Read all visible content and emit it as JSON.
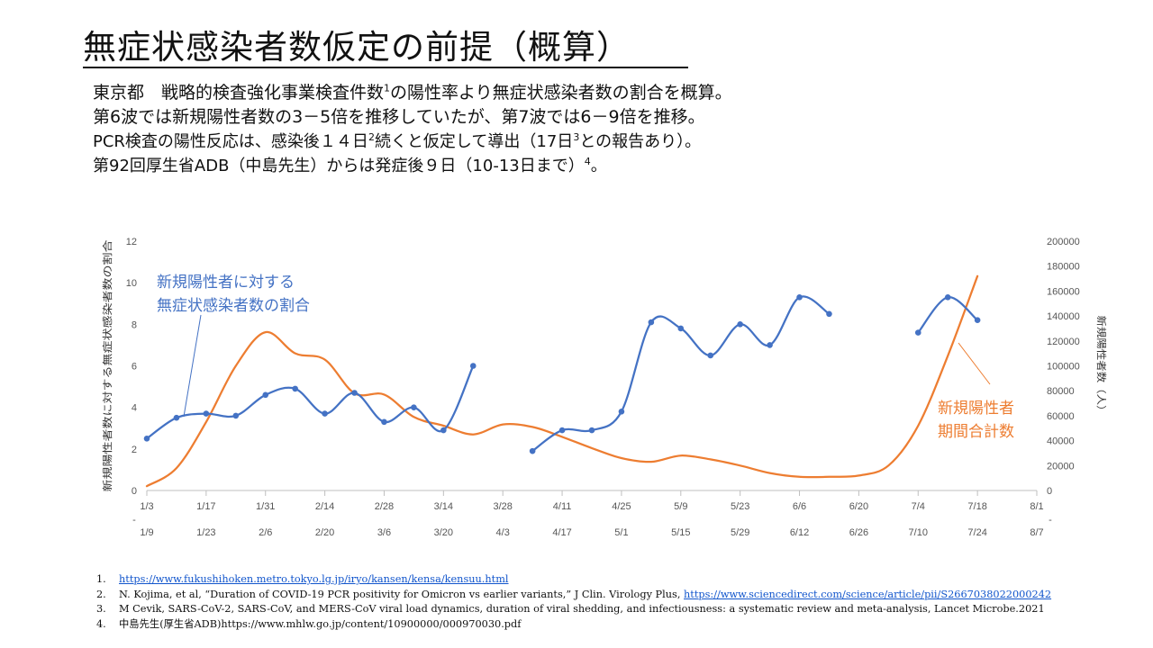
{
  "title": "無症状感染者数仮定の前提（概算）",
  "intro": {
    "line1_a": "東京都　戦略的検査強化事業検査件数",
    "line1_sup": "1",
    "line1_b": "の陽性率より無症状感染者数の割合を概算。",
    "line2": "第6波では新規陽性者数の3－5倍を推移していたが、第7波では6－9倍を推移。",
    "line3_a": "PCR検査の陽性反応は、感染後１４日",
    "line3_sup1": "2",
    "line3_b": "続くと仮定して導出（17日",
    "line3_sup2": "3",
    "line3_c": "との報告あり）。",
    "line4_a": "第92回厚生省ADB（中島先生）からは発症後９日（10-13日まで）",
    "line4_sup": "4",
    "line4_b": "。"
  },
  "chart_data": {
    "type": "line",
    "x_ticks_top": [
      "1/3",
      "1/17",
      "1/31",
      "2/14",
      "2/28",
      "3/14",
      "3/28",
      "4/11",
      "4/25",
      "5/9",
      "5/23",
      "6/6",
      "6/20",
      "7/4",
      "7/18",
      "8/1"
    ],
    "x_ticks_bottom": [
      "1/9",
      "1/23",
      "2/6",
      "2/20",
      "3/6",
      "3/20",
      "4/3",
      "4/17",
      "5/1",
      "5/15",
      "5/29",
      "6/12",
      "6/26",
      "7/10",
      "7/24",
      "8/7"
    ],
    "x_dash": "-",
    "ylabel_left": "新規陽性者数に対する無症状感染者数の割合",
    "ylabel_right": "新規陽性者数（人）",
    "ylim_left": [
      0,
      12
    ],
    "yticks_left": [
      "0",
      "2",
      "4",
      "6",
      "8",
      "10",
      "12"
    ],
    "ylim_right": [
      0,
      200000
    ],
    "yticks_right": [
      "0",
      "20000",
      "40000",
      "60000",
      "80000",
      "100000",
      "120000",
      "140000",
      "160000",
      "180000",
      "200000"
    ],
    "grid": false,
    "series": [
      {
        "axis": "left",
        "color": "#4472c4",
        "x": [
          0,
          1,
          2,
          3,
          4,
          5,
          6,
          7,
          8,
          9,
          10,
          11,
          null,
          13,
          14,
          15,
          16,
          17,
          18,
          19,
          20,
          21,
          22,
          23,
          null,
          null,
          26,
          27,
          28
        ],
        "values": [
          2.5,
          3.5,
          3.7,
          3.6,
          4.6,
          4.9,
          3.7,
          4.7,
          3.3,
          4.0,
          2.9,
          6.0,
          null,
          1.9,
          2.9,
          2.9,
          3.8,
          8.1,
          7.8,
          6.5,
          8.0,
          7.0,
          9.3,
          8.5,
          null,
          null,
          7.6,
          9.3,
          8.2
        ]
      },
      {
        "axis": "right",
        "color": "#ed7d31",
        "x": [
          0,
          1,
          2,
          3,
          4,
          5,
          6,
          7,
          8,
          9,
          10,
          11,
          12,
          13,
          14,
          15,
          16,
          17,
          18,
          19,
          20,
          21,
          22,
          23,
          24,
          25,
          26,
          27,
          28
        ],
        "values": [
          3500,
          18000,
          55000,
          100000,
          127000,
          110000,
          105000,
          78000,
          77000,
          59000,
          52000,
          45000,
          53000,
          51000,
          43000,
          34000,
          26000,
          23000,
          28000,
          25000,
          20000,
          14000,
          11000,
          11000,
          12000,
          20000,
          52000,
          108000,
          172000
        ]
      }
    ],
    "annotations": [
      {
        "text": "新規陽性者に対する",
        "color": "#4472c4"
      },
      {
        "text": "無症状感染者数の割合",
        "color": "#4472c4"
      },
      {
        "text": "新規陽性者",
        "color": "#ed7d31"
      },
      {
        "text": "期間合計数",
        "color": "#ed7d31"
      }
    ]
  },
  "references": [
    {
      "num": "1.",
      "parts": [
        {
          "text": "https://www.fukushihoken.metro.tokyo.lg.jp/iryo/kansen/kensa/kensuu.html",
          "link": true
        }
      ]
    },
    {
      "num": "2.",
      "parts": [
        {
          "text": "N. Kojima, et al, “Duration of COVID-19 PCR positivity for Omicron vs earlier variants,” J Clin. Virology Plus, ",
          "link": false
        },
        {
          "text": "https://www.sciencedirect.com/science/article/pii/S2667038022000242",
          "link": true
        }
      ]
    },
    {
      "num": "3.",
      "parts": [
        {
          "text": "M Cevik, SARS-CoV-2, SARS-CoV, and MERS-CoV viral load dynamics, duration of viral shedding, and infectiousness: a systematic review and meta-analysis, Lancet Microbe.2021",
          "link": false
        }
      ]
    },
    {
      "num": "4.",
      "parts": [
        {
          "text": "中島先生(厚生省ADB)https://www.mhlw.go.jp/content/10900000/000970030.pdf",
          "link": false
        }
      ]
    }
  ]
}
